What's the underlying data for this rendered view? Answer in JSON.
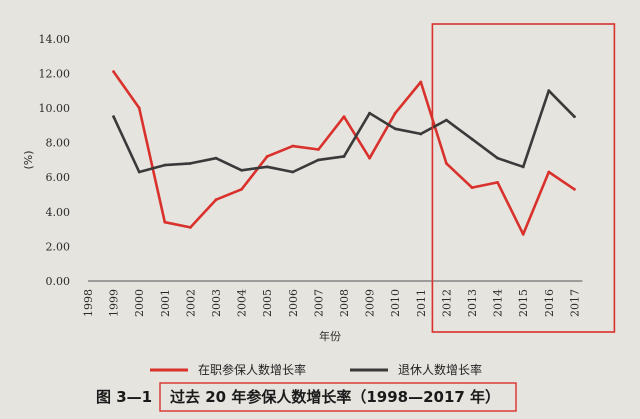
{
  "chart_data": {
    "type": "line",
    "categories": [
      "1998",
      "1999",
      "2000",
      "2001",
      "2002",
      "2003",
      "2004",
      "2005",
      "2006",
      "2007",
      "2008",
      "2009",
      "2010",
      "2011",
      "2012",
      "2013",
      "2014",
      "2015",
      "2016",
      "2017"
    ],
    "series": [
      {
        "name": "在职参保人数增长率",
        "color": "#d9312c",
        "values": [
          null,
          12.1,
          10.0,
          3.4,
          3.1,
          4.7,
          5.3,
          7.2,
          7.8,
          7.6,
          9.5,
          7.1,
          9.7,
          11.5,
          6.8,
          5.4,
          5.7,
          2.7,
          6.3,
          5.3
        ]
      },
      {
        "name": "退休人数增长率",
        "color": "#3a3a3a",
        "values": [
          null,
          9.5,
          6.3,
          6.7,
          6.8,
          7.1,
          6.4,
          6.6,
          6.3,
          7.0,
          7.2,
          9.7,
          8.8,
          8.5,
          9.3,
          8.2,
          7.1,
          6.6,
          11.0,
          9.5
        ]
      }
    ],
    "yticks": [
      "0.00",
      "2.00",
      "4.00",
      "6.00",
      "8.00",
      "10.00",
      "12.00",
      "14.00"
    ],
    "ylim": [
      0,
      14
    ],
    "ylabel": "(%)",
    "xlabel": "年份",
    "highlight_color": "#d9312c",
    "caption": {
      "number": "图 3—1",
      "title": "过去 20 年参保人数增长率（1998—2017 年）"
    }
  }
}
